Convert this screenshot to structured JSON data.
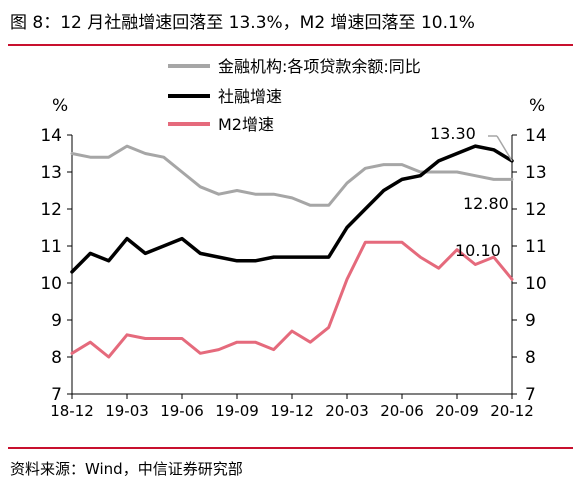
{
  "header": {
    "title": "图 8：12 月社融增速回落至 13.3%，M2 增速回落至 10.1%"
  },
  "footer": {
    "source": "资料来源：Wind，中信证券研究部"
  },
  "colors": {
    "rule": "#c8102e",
    "gray": "#a6a6a6",
    "black": "#000000",
    "pink": "#e56a7c"
  },
  "chart_data": {
    "type": "line",
    "ylabel": "%",
    "ylabel_right": "%",
    "ylim": [
      7,
      14
    ],
    "yticks": [
      "7",
      "8",
      "9",
      "10",
      "11",
      "12",
      "13",
      "14"
    ],
    "x": [
      "18-12",
      "19-01",
      "19-02",
      "19-03",
      "19-04",
      "19-05",
      "19-06",
      "19-07",
      "19-08",
      "19-09",
      "19-10",
      "19-11",
      "19-12",
      "20-01",
      "20-02",
      "20-03",
      "20-04",
      "20-05",
      "20-06",
      "20-07",
      "20-08",
      "20-09",
      "20-10",
      "20-11",
      "20-12"
    ],
    "xticks": [
      "18-12",
      "19-03",
      "19-06",
      "19-09",
      "19-12",
      "20-03",
      "20-06",
      "20-09",
      "20-12"
    ],
    "legend": {
      "placement": "top"
    },
    "series": [
      {
        "name": "金融机构:各项贷款余额:同比",
        "color": "#a6a6a6",
        "values": [
          13.5,
          13.4,
          13.4,
          13.7,
          13.5,
          13.4,
          13.0,
          12.6,
          12.4,
          12.5,
          12.4,
          12.4,
          12.3,
          12.1,
          12.1,
          12.7,
          13.1,
          13.2,
          13.2,
          13.0,
          13.0,
          13.0,
          12.9,
          12.8,
          12.8
        ]
      },
      {
        "name": "社融增速",
        "color": "#000000",
        "values": [
          10.3,
          10.8,
          10.6,
          11.2,
          10.8,
          11.0,
          11.2,
          10.8,
          10.7,
          10.6,
          10.6,
          10.7,
          10.7,
          10.7,
          10.7,
          11.5,
          12.0,
          12.5,
          12.8,
          12.9,
          13.3,
          13.5,
          13.7,
          13.6,
          13.3
        ]
      },
      {
        "name": "M2增速",
        "color": "#e56a7c",
        "values": [
          8.1,
          8.4,
          8.0,
          8.6,
          8.5,
          8.5,
          8.5,
          8.1,
          8.2,
          8.4,
          8.4,
          8.2,
          8.7,
          8.4,
          8.8,
          10.1,
          11.1,
          11.1,
          11.1,
          10.7,
          10.4,
          10.9,
          10.5,
          10.7,
          10.1
        ]
      }
    ],
    "annotations": [
      "13.30",
      "12.80",
      "10.10"
    ]
  }
}
